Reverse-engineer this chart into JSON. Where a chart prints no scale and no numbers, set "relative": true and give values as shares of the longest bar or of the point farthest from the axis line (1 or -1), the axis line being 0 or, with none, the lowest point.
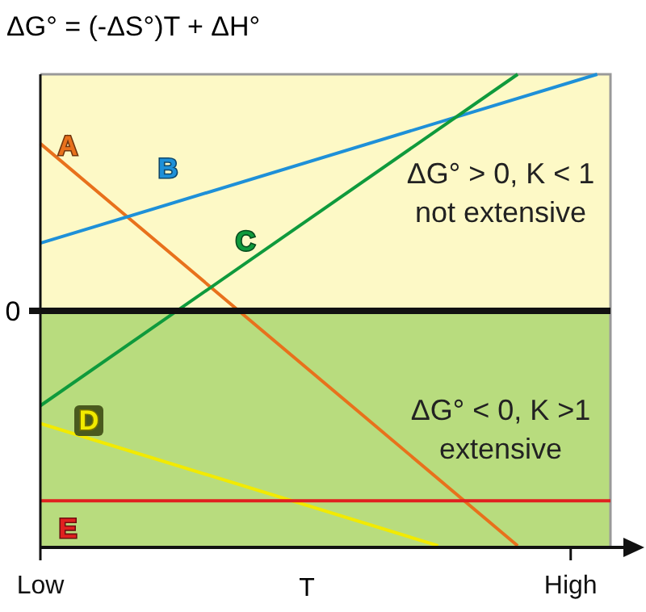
{
  "chart_data": {
    "type": "line",
    "title": "ΔG° = (-ΔS°)T + ΔH°",
    "xlabel": "T",
    "relative": true,
    "marker": "none",
    "line_style": "solid",
    "legend": false,
    "grid": false,
    "categories": [
      "Low",
      null,
      null,
      null,
      null,
      null,
      null,
      null,
      null,
      null,
      null,
      null,
      null,
      null,
      null,
      null,
      null,
      null,
      null,
      null,
      null,
      null,
      null,
      null,
      null,
      null,
      null,
      null,
      null,
      null,
      null,
      null,
      null,
      null,
      null,
      null,
      null,
      null,
      null,
      null,
      "High",
      null,
      null,
      null
    ],
    "series": [
      {
        "name": "A",
        "color": "#e8711c",
        "values": [
          0.707,
          null,
          null,
          null,
          null,
          null,
          null,
          null,
          null,
          null,
          null,
          null,
          null,
          null,
          null,
          null,
          null,
          null,
          null,
          null,
          null,
          null,
          null,
          null,
          null,
          null,
          null,
          null,
          null,
          null,
          null,
          null,
          null,
          null,
          null,
          null,
          -0.993,
          null,
          null,
          null,
          null,
          null,
          null,
          null
        ]
      },
      {
        "name": "B",
        "color": "#1e90d8",
        "values": [
          0.286,
          null,
          null,
          null,
          null,
          null,
          null,
          null,
          null,
          null,
          null,
          null,
          null,
          null,
          null,
          null,
          null,
          null,
          null,
          null,
          null,
          null,
          null,
          null,
          null,
          null,
          null,
          null,
          null,
          null,
          null,
          null,
          null,
          null,
          null,
          null,
          null,
          null,
          null,
          null,
          null,
          null,
          1.0,
          null
        ]
      },
      {
        "name": "C",
        "color": "#0f9a3c",
        "values": [
          -0.401,
          null,
          null,
          null,
          null,
          null,
          null,
          null,
          null,
          null,
          null,
          null,
          null,
          null,
          null,
          null,
          null,
          null,
          null,
          null,
          null,
          null,
          null,
          null,
          null,
          null,
          null,
          null,
          null,
          null,
          null,
          null,
          null,
          null,
          null,
          null,
          1.0,
          null,
          null,
          null,
          null,
          null,
          null,
          null
        ]
      },
      {
        "name": "D",
        "color": "#f2ea00",
        "values": [
          -0.476,
          null,
          null,
          null,
          null,
          null,
          null,
          null,
          null,
          null,
          null,
          null,
          null,
          null,
          null,
          null,
          null,
          null,
          null,
          null,
          null,
          null,
          null,
          null,
          null,
          null,
          null,
          null,
          null,
          null,
          -0.993,
          null,
          null,
          null,
          null,
          null,
          null,
          null,
          null,
          null,
          null,
          null,
          null,
          null
        ]
      },
      {
        "name": "E",
        "color": "#e02020",
        "values": [
          -0.803,
          null,
          null,
          null,
          null,
          null,
          null,
          null,
          null,
          null,
          null,
          null,
          null,
          null,
          null,
          null,
          null,
          null,
          null,
          null,
          null,
          null,
          null,
          null,
          null,
          null,
          null,
          null,
          null,
          null,
          null,
          null,
          null,
          null,
          null,
          null,
          null,
          null,
          null,
          null,
          null,
          null,
          null,
          -0.803
        ]
      }
    ],
    "bands": [
      {
        "axis": "y",
        "from": 0,
        "to": 1,
        "color": "#fdf9c6",
        "label": "ΔG° > 0, K < 1\nnot extensive"
      },
      {
        "axis": "y",
        "from": -1,
        "to": 0,
        "color": "#b8dc7e",
        "label": "ΔG° < 0, K >1\nextensive"
      }
    ],
    "ref_lines": [
      {
        "axis": "y",
        "value": 0,
        "label": "0",
        "color": "#111111"
      }
    ]
  }
}
